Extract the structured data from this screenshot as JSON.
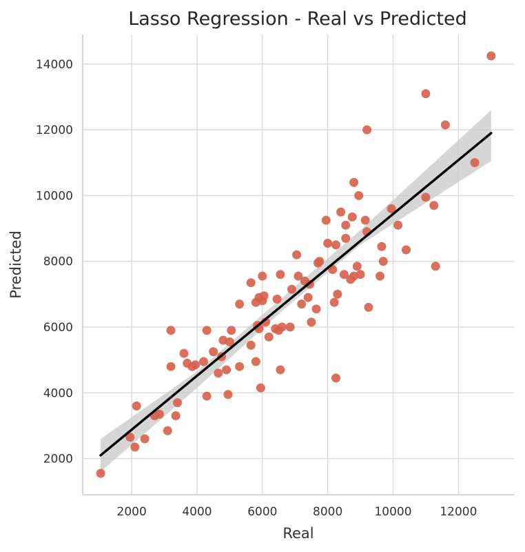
{
  "chart_data": {
    "type": "scatter",
    "title": "Lasso Regression - Real vs Predicted",
    "xlabel": "Real",
    "ylabel": "Predicted",
    "xlim": [
      500,
      13700
    ],
    "ylim": [
      900,
      14900
    ],
    "xticks": [
      2000,
      4000,
      6000,
      8000,
      10000,
      12000
    ],
    "yticks": [
      2000,
      4000,
      6000,
      8000,
      10000,
      12000,
      14000
    ],
    "grid": true,
    "colors": {
      "points": "#d65f4a",
      "fit_line": "#000000",
      "ci_band": "#c8c8c8"
    },
    "series": [
      {
        "points": [
          [
            1050,
            1550
          ],
          [
            1950,
            2650
          ],
          [
            2100,
            2350
          ],
          [
            2150,
            3600
          ],
          [
            2400,
            2600
          ],
          [
            2700,
            3300
          ],
          [
            2850,
            3350
          ],
          [
            3100,
            2850
          ],
          [
            3200,
            4800
          ],
          [
            3200,
            5900
          ],
          [
            3350,
            3300
          ],
          [
            3400,
            3700
          ],
          [
            3600,
            5200
          ],
          [
            3700,
            4900
          ],
          [
            3850,
            4800
          ],
          [
            3950,
            4850
          ],
          [
            4200,
            4950
          ],
          [
            4300,
            3900
          ],
          [
            4300,
            5900
          ],
          [
            4500,
            5250
          ],
          [
            4650,
            4600
          ],
          [
            4750,
            5100
          ],
          [
            4800,
            5600
          ],
          [
            4900,
            4700
          ],
          [
            4950,
            3950
          ],
          [
            5000,
            5550
          ],
          [
            5050,
            5900
          ],
          [
            5300,
            4800
          ],
          [
            5300,
            6700
          ],
          [
            5650,
            5450
          ],
          [
            5650,
            7350
          ],
          [
            5800,
            4950
          ],
          [
            5800,
            6750
          ],
          [
            5850,
            6050
          ],
          [
            5900,
            5950
          ],
          [
            5900,
            6900
          ],
          [
            5950,
            4150
          ],
          [
            6000,
            7550
          ],
          [
            6000,
            6800
          ],
          [
            6050,
            6950
          ],
          [
            6100,
            6150
          ],
          [
            6200,
            5700
          ],
          [
            6400,
            5950
          ],
          [
            6450,
            6850
          ],
          [
            6500,
            5900
          ],
          [
            6550,
            4700
          ],
          [
            6550,
            7600
          ],
          [
            6600,
            6000
          ],
          [
            6850,
            6000
          ],
          [
            6900,
            7150
          ],
          [
            7050,
            8200
          ],
          [
            7100,
            7550
          ],
          [
            7200,
            6700
          ],
          [
            7300,
            7400
          ],
          [
            7400,
            6900
          ],
          [
            7450,
            7300
          ],
          [
            7500,
            6150
          ],
          [
            7650,
            6550
          ],
          [
            7700,
            7950
          ],
          [
            7750,
            8000
          ],
          [
            7950,
            9250
          ],
          [
            8000,
            8550
          ],
          [
            8150,
            7750
          ],
          [
            8200,
            6750
          ],
          [
            8250,
            8500
          ],
          [
            8250,
            4450
          ],
          [
            8300,
            7000
          ],
          [
            8400,
            9500
          ],
          [
            8500,
            7600
          ],
          [
            8550,
            9100
          ],
          [
            8550,
            8700
          ],
          [
            8700,
            7450
          ],
          [
            8750,
            9350
          ],
          [
            8800,
            10400
          ],
          [
            8800,
            7550
          ],
          [
            8900,
            7850
          ],
          [
            8950,
            10000
          ],
          [
            9000,
            7600
          ],
          [
            9150,
            9250
          ],
          [
            9200,
            12000
          ],
          [
            9200,
            8900
          ],
          [
            9250,
            6600
          ],
          [
            9650,
            8450
          ],
          [
            9700,
            8000
          ],
          [
            9600,
            7550
          ],
          [
            9950,
            9600
          ],
          [
            10150,
            9100
          ],
          [
            10400,
            8350
          ],
          [
            11000,
            13100
          ],
          [
            11000,
            9950
          ],
          [
            11250,
            9700
          ],
          [
            11300,
            7850
          ],
          [
            11600,
            12150
          ],
          [
            12500,
            11000
          ],
          [
            13000,
            14250
          ]
        ]
      }
    ],
    "fit_line": {
      "x": [
        1050,
        13000
      ],
      "y": [
        2100,
        11900
      ]
    },
    "confidence_band": {
      "x": [
        1050,
        4000,
        6500,
        9000,
        13000
      ],
      "upper": [
        2600,
        4650,
        6800,
        8950,
        12600
      ],
      "lower": [
        1600,
        4150,
        6400,
        8500,
        11050
      ]
    }
  }
}
